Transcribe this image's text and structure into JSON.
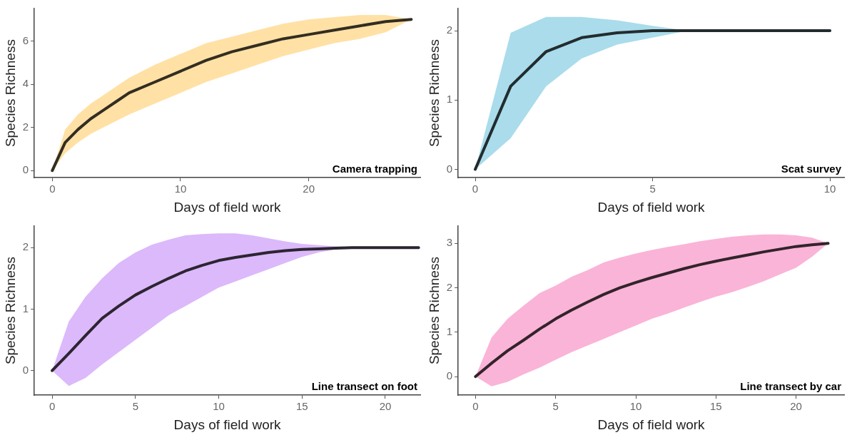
{
  "chart_data": [
    {
      "type": "line",
      "xlabel": "Days of field work",
      "ylabel": "Species Richness",
      "annotations": [
        "Camera trapping"
      ],
      "xlim": [
        -1.4,
        28.7
      ],
      "ylim": [
        -0.33,
        7.5
      ],
      "xticks": [
        0,
        10,
        20
      ],
      "yticks": [
        0,
        2,
        4,
        6
      ],
      "grid": false,
      "legend": false,
      "marker": "none",
      "series": [
        {
          "color": "#332d21",
          "x": [
            0,
            1,
            2,
            3,
            4,
            5,
            6,
            8,
            10,
            12,
            14,
            16,
            18,
            20,
            22,
            24,
            26,
            28
          ],
          "values": [
            0,
            1.3,
            1.9,
            2.4,
            2.8,
            3.2,
            3.6,
            4.1,
            4.6,
            5.1,
            5.5,
            5.8,
            6.1,
            6.3,
            6.5,
            6.7,
            6.9,
            7.0
          ],
          "upper": [
            0,
            1.9,
            2.6,
            3.1,
            3.5,
            3.9,
            4.3,
            4.9,
            5.4,
            5.9,
            6.2,
            6.5,
            6.8,
            7.0,
            7.1,
            7.2,
            7.2,
            7.0
          ],
          "lower": [
            0,
            0.8,
            1.3,
            1.7,
            2.0,
            2.3,
            2.6,
            3.1,
            3.6,
            4.1,
            4.5,
            4.9,
            5.3,
            5.6,
            5.9,
            6.1,
            6.4,
            7.0
          ]
        }
      ]
    },
    {
      "type": "line",
      "xlabel": "Days of field work",
      "ylabel": "Species Richness",
      "annotations": [
        "Scat survey"
      ],
      "xlim": [
        -0.48,
        10.4
      ],
      "ylim": [
        -0.12,
        2.32
      ],
      "xticks": [
        0,
        5,
        10
      ],
      "yticks": [
        0,
        1,
        2
      ],
      "grid": false,
      "legend": false,
      "marker": "none",
      "series": [
        {
          "color": "#222c2f",
          "x": [
            0,
            1,
            2,
            3,
            4,
            5,
            6,
            7,
            8,
            9,
            10
          ],
          "values": [
            0,
            1.2,
            1.7,
            1.9,
            1.97,
            2,
            2,
            2,
            2,
            2,
            2
          ],
          "upper": [
            0,
            1.97,
            2.2,
            2.2,
            2.15,
            2.07,
            2,
            2,
            2,
            2,
            2
          ],
          "lower": [
            0,
            0.45,
            1.2,
            1.6,
            1.8,
            1.9,
            2,
            2,
            2,
            2,
            2
          ]
        }
      ]
    },
    {
      "type": "line",
      "xlabel": "Days of field work",
      "ylabel": "Species Richness",
      "annotations": [
        "Line transect on foot"
      ],
      "xlim": [
        -1.07,
        22.1
      ],
      "ylim": [
        -0.4,
        2.35
      ],
      "xticks": [
        0,
        5,
        10,
        15,
        20
      ],
      "yticks": [
        0,
        1,
        2
      ],
      "grid": false,
      "legend": false,
      "marker": "none",
      "series": [
        {
          "color": "#2c2532",
          "x": [
            0,
            1,
            2,
            3,
            4,
            5,
            6,
            7,
            8,
            9,
            10,
            11,
            12,
            13,
            14,
            15,
            16,
            17,
            18,
            19,
            20,
            21,
            22
          ],
          "values": [
            0,
            0.28,
            0.57,
            0.85,
            1.05,
            1.23,
            1.37,
            1.5,
            1.62,
            1.71,
            1.79,
            1.84,
            1.88,
            1.92,
            1.95,
            1.97,
            1.98,
            1.99,
            2,
            2,
            2,
            2,
            2
          ],
          "upper": [
            0,
            0.8,
            1.2,
            1.5,
            1.75,
            1.92,
            2.05,
            2.13,
            2.2,
            2.22,
            2.23,
            2.23,
            2.2,
            2.15,
            2.1,
            2.06,
            2.04,
            2.02,
            2.01,
            2,
            2,
            2,
            2
          ],
          "lower": [
            0,
            -0.25,
            -0.12,
            0.1,
            0.3,
            0.5,
            0.7,
            0.9,
            1.05,
            1.2,
            1.35,
            1.45,
            1.55,
            1.65,
            1.75,
            1.85,
            1.92,
            1.97,
            1.99,
            2,
            2,
            2,
            2
          ]
        }
      ]
    },
    {
      "type": "line",
      "xlabel": "Days of field work",
      "ylabel": "Species Richness",
      "annotations": [
        "Line transect by car"
      ],
      "xlim": [
        -1.08,
        23
      ],
      "ylim": [
        -0.42,
        3.39
      ],
      "xticks": [
        0,
        5,
        10,
        15,
        20
      ],
      "yticks": [
        0,
        1,
        2,
        3
      ],
      "grid": false,
      "legend": false,
      "marker": "none",
      "series": [
        {
          "color": "#32242b",
          "x": [
            0,
            1,
            2,
            3,
            4,
            5,
            6,
            7,
            8,
            9,
            10,
            11,
            12,
            13,
            14,
            15,
            16,
            17,
            18,
            19,
            20,
            21,
            22
          ],
          "values": [
            0,
            0.3,
            0.58,
            0.82,
            1.07,
            1.3,
            1.5,
            1.68,
            1.85,
            2.0,
            2.12,
            2.23,
            2.33,
            2.43,
            2.52,
            2.6,
            2.67,
            2.74,
            2.81,
            2.87,
            2.93,
            2.97,
            3
          ],
          "upper": [
            0,
            0.88,
            1.3,
            1.6,
            1.88,
            2.05,
            2.25,
            2.4,
            2.57,
            2.68,
            2.77,
            2.85,
            2.92,
            2.98,
            3.05,
            3.1,
            3.15,
            3.18,
            3.2,
            3.2,
            3.18,
            3.13,
            3
          ],
          "lower": [
            0,
            -0.22,
            -0.12,
            0.05,
            0.2,
            0.38,
            0.55,
            0.7,
            0.85,
            1.0,
            1.15,
            1.3,
            1.42,
            1.55,
            1.68,
            1.8,
            1.9,
            2.02,
            2.15,
            2.3,
            2.45,
            2.7,
            3
          ]
        }
      ]
    }
  ]
}
